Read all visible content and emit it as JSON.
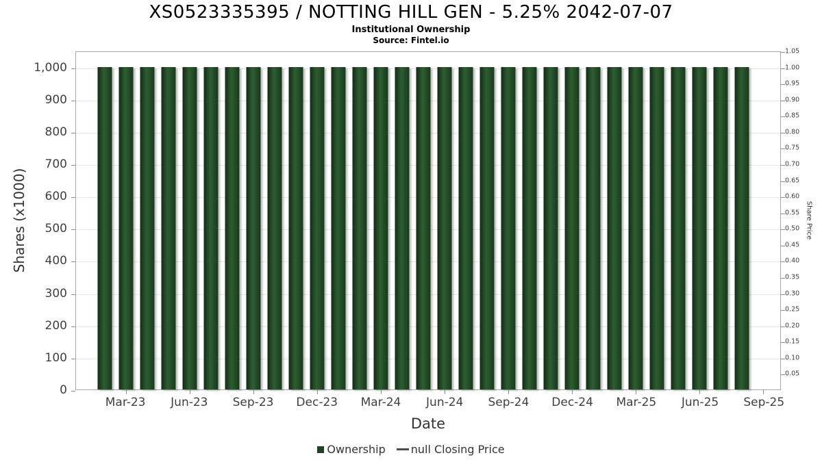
{
  "header": {
    "title": "XS0523335395 / NOTTING HILL GEN - 5.25% 2042-07-07",
    "subtitle": "Institutional Ownership",
    "source": "Source: Fintel.io"
  },
  "chart_data": {
    "type": "bar",
    "title": "XS0523335395 / NOTTING HILL GEN - 5.25% 2042-07-07",
    "subtitle": "Institutional Ownership",
    "source": "Source: Fintel.io",
    "xlabel": "Date",
    "ylabel_left": "Shares (x1000)",
    "ylabel_right": "Share Price",
    "grid": true,
    "legend_position": "bottom",
    "bar_color": "#1d4522",
    "categories": [
      "Feb-23",
      "Mar-23",
      "Apr-23",
      "May-23",
      "Jun-23",
      "Jul-23",
      "Aug-23",
      "Sep-23",
      "Oct-23",
      "Nov-23",
      "Dec-23",
      "Jan-24",
      "Feb-24",
      "Mar-24",
      "Apr-24",
      "May-24",
      "Jun-24",
      "Jul-24",
      "Aug-24",
      "Sep-24",
      "Oct-24",
      "Nov-24",
      "Dec-24",
      "Jan-25",
      "Feb-25",
      "Mar-25",
      "Apr-25",
      "May-25",
      "Jun-25",
      "Jul-25",
      "Aug-25"
    ],
    "values": [
      1000,
      1000,
      1000,
      1000,
      1000,
      1000,
      1000,
      1000,
      1000,
      1000,
      1000,
      1000,
      1000,
      1000,
      1000,
      1000,
      1000,
      1000,
      1000,
      1000,
      1000,
      1000,
      1000,
      1000,
      1000,
      1000,
      1000,
      1000,
      1000,
      1000,
      1000
    ],
    "x_tick_labels": [
      "Mar-23",
      "Jun-23",
      "Sep-23",
      "Dec-23",
      "Mar-24",
      "Jun-24",
      "Sep-24",
      "Dec-24",
      "Mar-25",
      "Jun-25",
      "Sep-25"
    ],
    "left_axis": {
      "label": "Shares (x1000)",
      "range": [
        0,
        1050
      ],
      "ticks": [
        0,
        100,
        200,
        300,
        400,
        500,
        600,
        700,
        800,
        900,
        1000
      ],
      "tick_labels": [
        "0",
        "100",
        "200",
        "300",
        "400",
        "500",
        "600",
        "700",
        "800",
        "900",
        "1,000"
      ]
    },
    "right_axis": {
      "label": "Share Price",
      "range": [
        0,
        1.05
      ],
      "ticks": [
        0.05,
        0.1,
        0.15,
        0.2,
        0.25,
        0.3,
        0.35,
        0.4,
        0.45,
        0.5,
        0.55,
        0.6,
        0.65,
        0.7,
        0.75,
        0.8,
        0.85,
        0.9,
        0.95,
        1.0,
        1.05
      ],
      "tick_labels": [
        "0.05",
        "0.10",
        "0.15",
        "0.20",
        "0.25",
        "0.30",
        "0.35",
        "0.40",
        "0.45",
        "0.50",
        "0.55",
        "0.60",
        "0.65",
        "0.70",
        "0.75",
        "0.80",
        "0.85",
        "0.90",
        "0.95",
        "1.00",
        "1.05"
      ]
    },
    "legend": [
      {
        "label": "Ownership",
        "marker": "square",
        "color": "#1d4522"
      },
      {
        "label": "null Closing Price",
        "marker": "line",
        "color": "#4d4d4d"
      }
    ]
  }
}
